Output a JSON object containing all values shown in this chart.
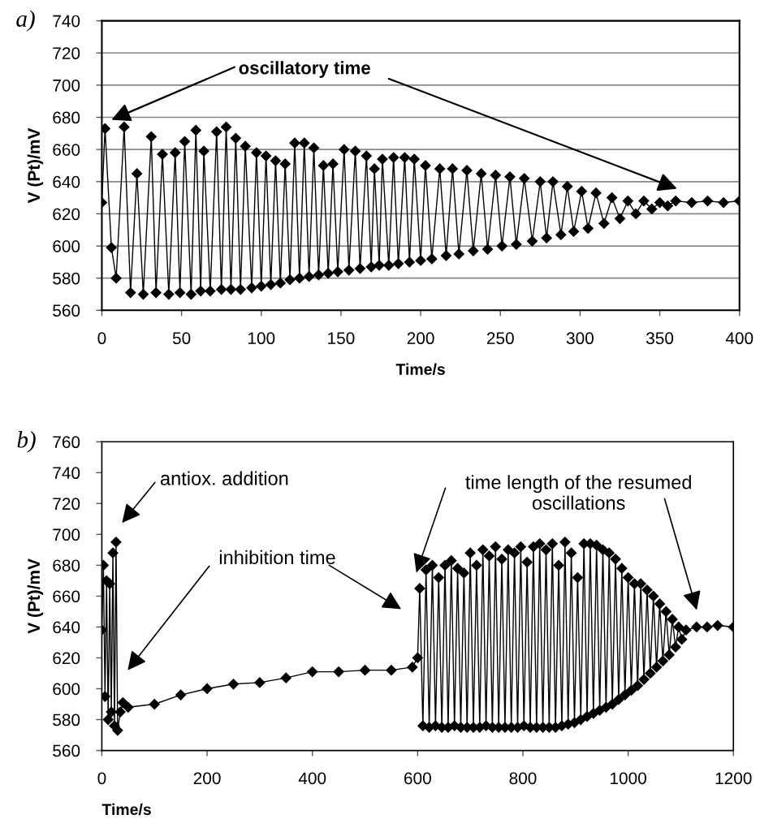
{
  "chart_data": [
    {
      "type": "line",
      "title": "a)",
      "xlabel": "Time/s",
      "ylabel": "V (Pt)/mV",
      "xlim": [
        0,
        400
      ],
      "xticks": [
        0,
        50,
        100,
        150,
        200,
        250,
        300,
        350,
        400
      ],
      "ylim": [
        560,
        740
      ],
      "yticks": [
        560,
        580,
        600,
        620,
        640,
        660,
        680,
        700,
        720,
        740
      ],
      "grid": "y",
      "marker": "diamond",
      "line_style": "solid",
      "annotations": [
        "oscillatory time"
      ],
      "series": [
        {
          "color": "#000000",
          "x": [
            0,
            2,
            6,
            9,
            14,
            18,
            22,
            26,
            31,
            34,
            38,
            42,
            46,
            49,
            52,
            56,
            59,
            62,
            64,
            68,
            72,
            75,
            78,
            81,
            84,
            87,
            90,
            94,
            97,
            100,
            103,
            106,
            109,
            112,
            115,
            118,
            121,
            124,
            127,
            130,
            133,
            136,
            139,
            142,
            145,
            148,
            152,
            155,
            159,
            162,
            166,
            169,
            171,
            174,
            176,
            180,
            183,
            186,
            190,
            193,
            196,
            200,
            203,
            207,
            212,
            216,
            220,
            224,
            229,
            233,
            238,
            242,
            247,
            251,
            256,
            260,
            265,
            270,
            275,
            279,
            283,
            288,
            292,
            296,
            301,
            305,
            310,
            315,
            320,
            325,
            330,
            335,
            340,
            345,
            350,
            355,
            360,
            370,
            380,
            390,
            400
          ],
          "values": [
            627,
            673,
            599,
            580,
            674,
            571,
            645,
            570,
            668,
            571,
            657,
            570,
            658,
            571,
            665,
            570,
            672,
            572,
            659,
            572,
            671,
            573,
            674,
            573,
            667,
            573,
            662,
            574,
            658,
            575,
            656,
            576,
            653,
            577,
            651,
            579,
            664,
            580,
            664,
            581,
            661,
            582,
            650,
            583,
            651,
            584,
            660,
            585,
            659,
            586,
            656,
            587,
            648,
            588,
            654,
            588,
            655,
            589,
            655,
            590,
            654,
            591,
            650,
            592,
            648,
            594,
            648,
            595,
            647,
            597,
            645,
            598,
            644,
            600,
            643,
            601,
            642,
            603,
            640,
            605,
            640,
            607,
            637,
            609,
            634,
            611,
            633,
            614,
            630,
            617,
            628,
            620,
            628,
            623,
            627,
            625,
            628,
            627,
            628,
            627,
            628
          ]
        }
      ]
    },
    {
      "type": "line",
      "title": "b)",
      "xlabel": "Time/s",
      "ylabel": "V (Pt)/mV",
      "xlim": [
        0,
        1200
      ],
      "xticks": [
        0,
        200,
        400,
        600,
        800,
        1000,
        1200
      ],
      "ylim": [
        560,
        760
      ],
      "yticks": [
        560,
        580,
        600,
        620,
        640,
        660,
        680,
        700,
        720,
        740,
        760
      ],
      "marker": "diamond",
      "line_style": "solid",
      "annotations": [
        "antiox. addition",
        "inhibition time",
        "time length of the resumed\noscillations"
      ],
      "series": [
        {
          "color": "#000000",
          "x": [
            0,
            3,
            6,
            9,
            12,
            15,
            18,
            21,
            24,
            27,
            30,
            35,
            40,
            50,
            100,
            150,
            200,
            250,
            300,
            350,
            400,
            450,
            500,
            550,
            590,
            600,
            604,
            610,
            616,
            622,
            628,
            634,
            640,
            646,
            652,
            658,
            664,
            670,
            676,
            682,
            688,
            694,
            700,
            706,
            712,
            718,
            724,
            730,
            736,
            742,
            748,
            754,
            760,
            766,
            772,
            778,
            784,
            790,
            796,
            802,
            808,
            814,
            820,
            826,
            832,
            838,
            844,
            850,
            856,
            862,
            868,
            874,
            880,
            886,
            892,
            898,
            904,
            910,
            916,
            922,
            928,
            934,
            940,
            946,
            952,
            958,
            964,
            970,
            976,
            982,
            988,
            994,
            1000,
            1006,
            1012,
            1018,
            1024,
            1030,
            1036,
            1042,
            1048,
            1054,
            1060,
            1066,
            1072,
            1078,
            1084,
            1090,
            1096,
            1102,
            1110,
            1130,
            1150,
            1170,
            1200
          ],
          "values": [
            638,
            680,
            595,
            670,
            580,
            668,
            585,
            688,
            576,
            695,
            573,
            585,
            591,
            588,
            590,
            596,
            600,
            603,
            604,
            607,
            611,
            611,
            612,
            612,
            614,
            620,
            665,
            576,
            677,
            575,
            680,
            576,
            672,
            575,
            680,
            575,
            683,
            576,
            678,
            575,
            675,
            575,
            688,
            575,
            680,
            575,
            690,
            576,
            686,
            575,
            692,
            575,
            684,
            575,
            690,
            575,
            688,
            575,
            692,
            576,
            682,
            575,
            692,
            575,
            694,
            575,
            690,
            575,
            694,
            575,
            680,
            576,
            695,
            577,
            688,
            578,
            672,
            580,
            694,
            582,
            694,
            584,
            693,
            586,
            690,
            588,
            688,
            590,
            684,
            593,
            678,
            596,
            672,
            599,
            668,
            602,
            668,
            606,
            664,
            610,
            660,
            614,
            655,
            618,
            650,
            622,
            645,
            627,
            640,
            632,
            638,
            640,
            640,
            641,
            640
          ]
        }
      ]
    }
  ]
}
